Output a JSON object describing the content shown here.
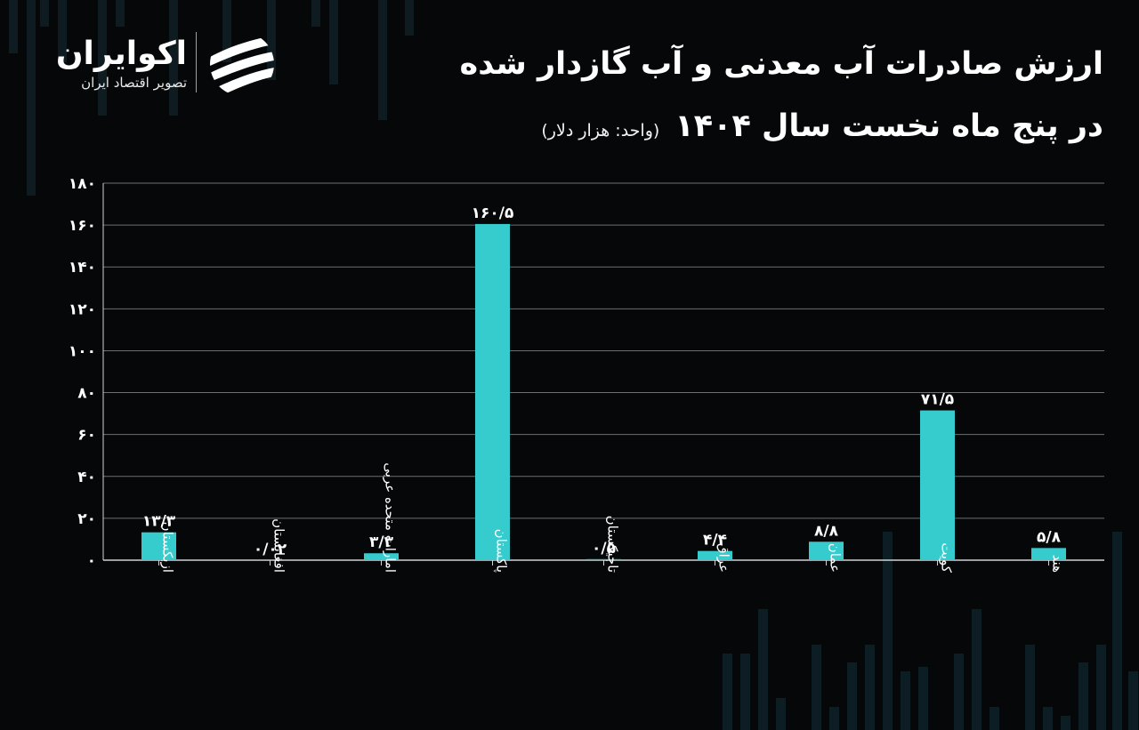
{
  "brand": {
    "name": "اکوایران",
    "tagline": "تصویر اقتصاد ایران",
    "logo_icon": "swoosh-circle-icon"
  },
  "title_line1": "ارزش صادرات آب معدنی و آب گازدار شده",
  "title_line2": "در پنج ماه نخست سال ۱۴۰۴",
  "unit_note": "(واحد: هزار دلار)",
  "colors": {
    "bar": "#36cbcd",
    "background": "#050708",
    "grid": "#6b7073",
    "text": "#ffffff"
  },
  "chart_data": {
    "type": "bar",
    "title": "ارزش صادرات آب معدنی و آب گازدار شده در پنج ماه نخست سال ۱۴۰۴",
    "unit": "هزار دلار",
    "categories": [
      "ازبکستان",
      "افغانستان",
      "امارات متحده عربی",
      "پاکستان",
      "تاجیکستان",
      "عراق",
      "عمان",
      "کویت",
      "هند"
    ],
    "values": [
      13.3,
      0.02,
      3.3,
      160.5,
      0.5,
      4.4,
      8.8,
      71.5,
      5.8
    ],
    "value_labels": [
      "۱۳/۳",
      "۰/۰۲",
      "۳/۳",
      "۱۶۰/۵",
      "۰/۵",
      "۴/۴",
      "۸/۸",
      "۷۱/۵",
      "۵/۸"
    ],
    "ylim": [
      0,
      180
    ],
    "yticks": [
      0,
      20,
      40,
      60,
      80,
      100,
      120,
      140,
      160,
      180
    ],
    "ytick_labels": [
      "۰",
      "۲۰",
      "۴۰",
      "۶۰",
      "۸۰",
      "۱۰۰",
      "۱۲۰",
      "۱۴۰",
      "۱۶۰",
      "۱۸۰"
    ],
    "grid": true,
    "legend": "none"
  }
}
